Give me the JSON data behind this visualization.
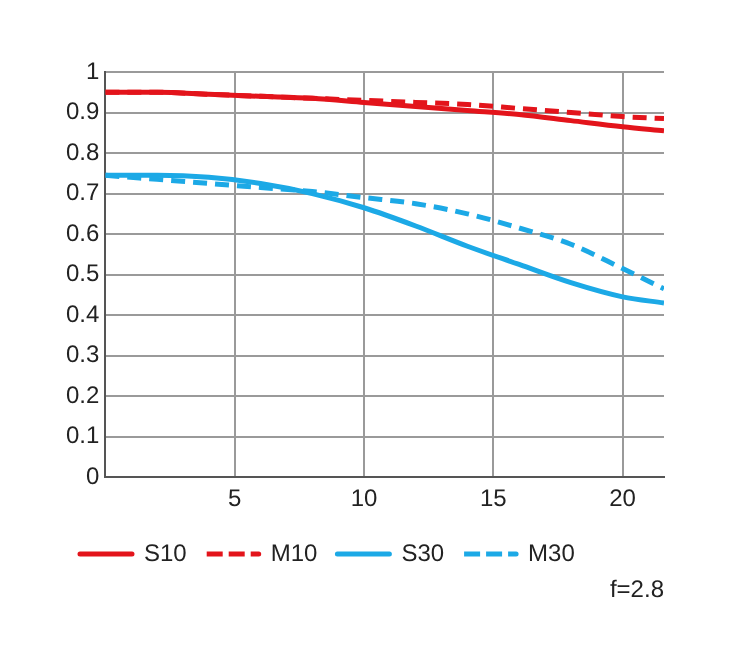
{
  "chart_data": {
    "type": "line",
    "x": [
      0,
      2,
      4,
      6,
      8,
      10,
      12,
      14,
      16,
      18,
      20,
      21.6
    ],
    "series": [
      {
        "name": "S10",
        "color": "#e3141b",
        "line_style": "solid",
        "values": [
          0.95,
          0.95,
          0.945,
          0.94,
          0.935,
          0.925,
          0.915,
          0.905,
          0.895,
          0.88,
          0.865,
          0.855
        ]
      },
      {
        "name": "M10",
        "color": "#e3141b",
        "line_style": "dashed",
        "values": [
          0.95,
          0.95,
          0.945,
          0.94,
          0.935,
          0.93,
          0.925,
          0.92,
          0.91,
          0.9,
          0.89,
          0.885
        ]
      },
      {
        "name": "S30",
        "color": "#1ca9e6",
        "line_style": "solid",
        "values": [
          0.745,
          0.745,
          0.74,
          0.725,
          0.7,
          0.665,
          0.62,
          0.57,
          0.525,
          0.48,
          0.445,
          0.43
        ]
      },
      {
        "name": "M30",
        "color": "#1ca9e6",
        "line_style": "dashed",
        "values": [
          0.745,
          0.735,
          0.725,
          0.715,
          0.705,
          0.69,
          0.675,
          0.65,
          0.615,
          0.575,
          0.515,
          0.465
        ]
      }
    ],
    "xlim": [
      0,
      21.6
    ],
    "xticks": [
      5,
      10,
      15,
      20
    ],
    "ylim": [
      0,
      1
    ],
    "yticks": [
      0,
      0.1,
      0.2,
      0.3,
      0.4,
      0.5,
      0.6,
      0.7,
      0.8,
      0.9,
      1
    ],
    "grid": true,
    "legend": "bottom",
    "marker": "none",
    "annotations": [
      "f=2.8"
    ]
  }
}
